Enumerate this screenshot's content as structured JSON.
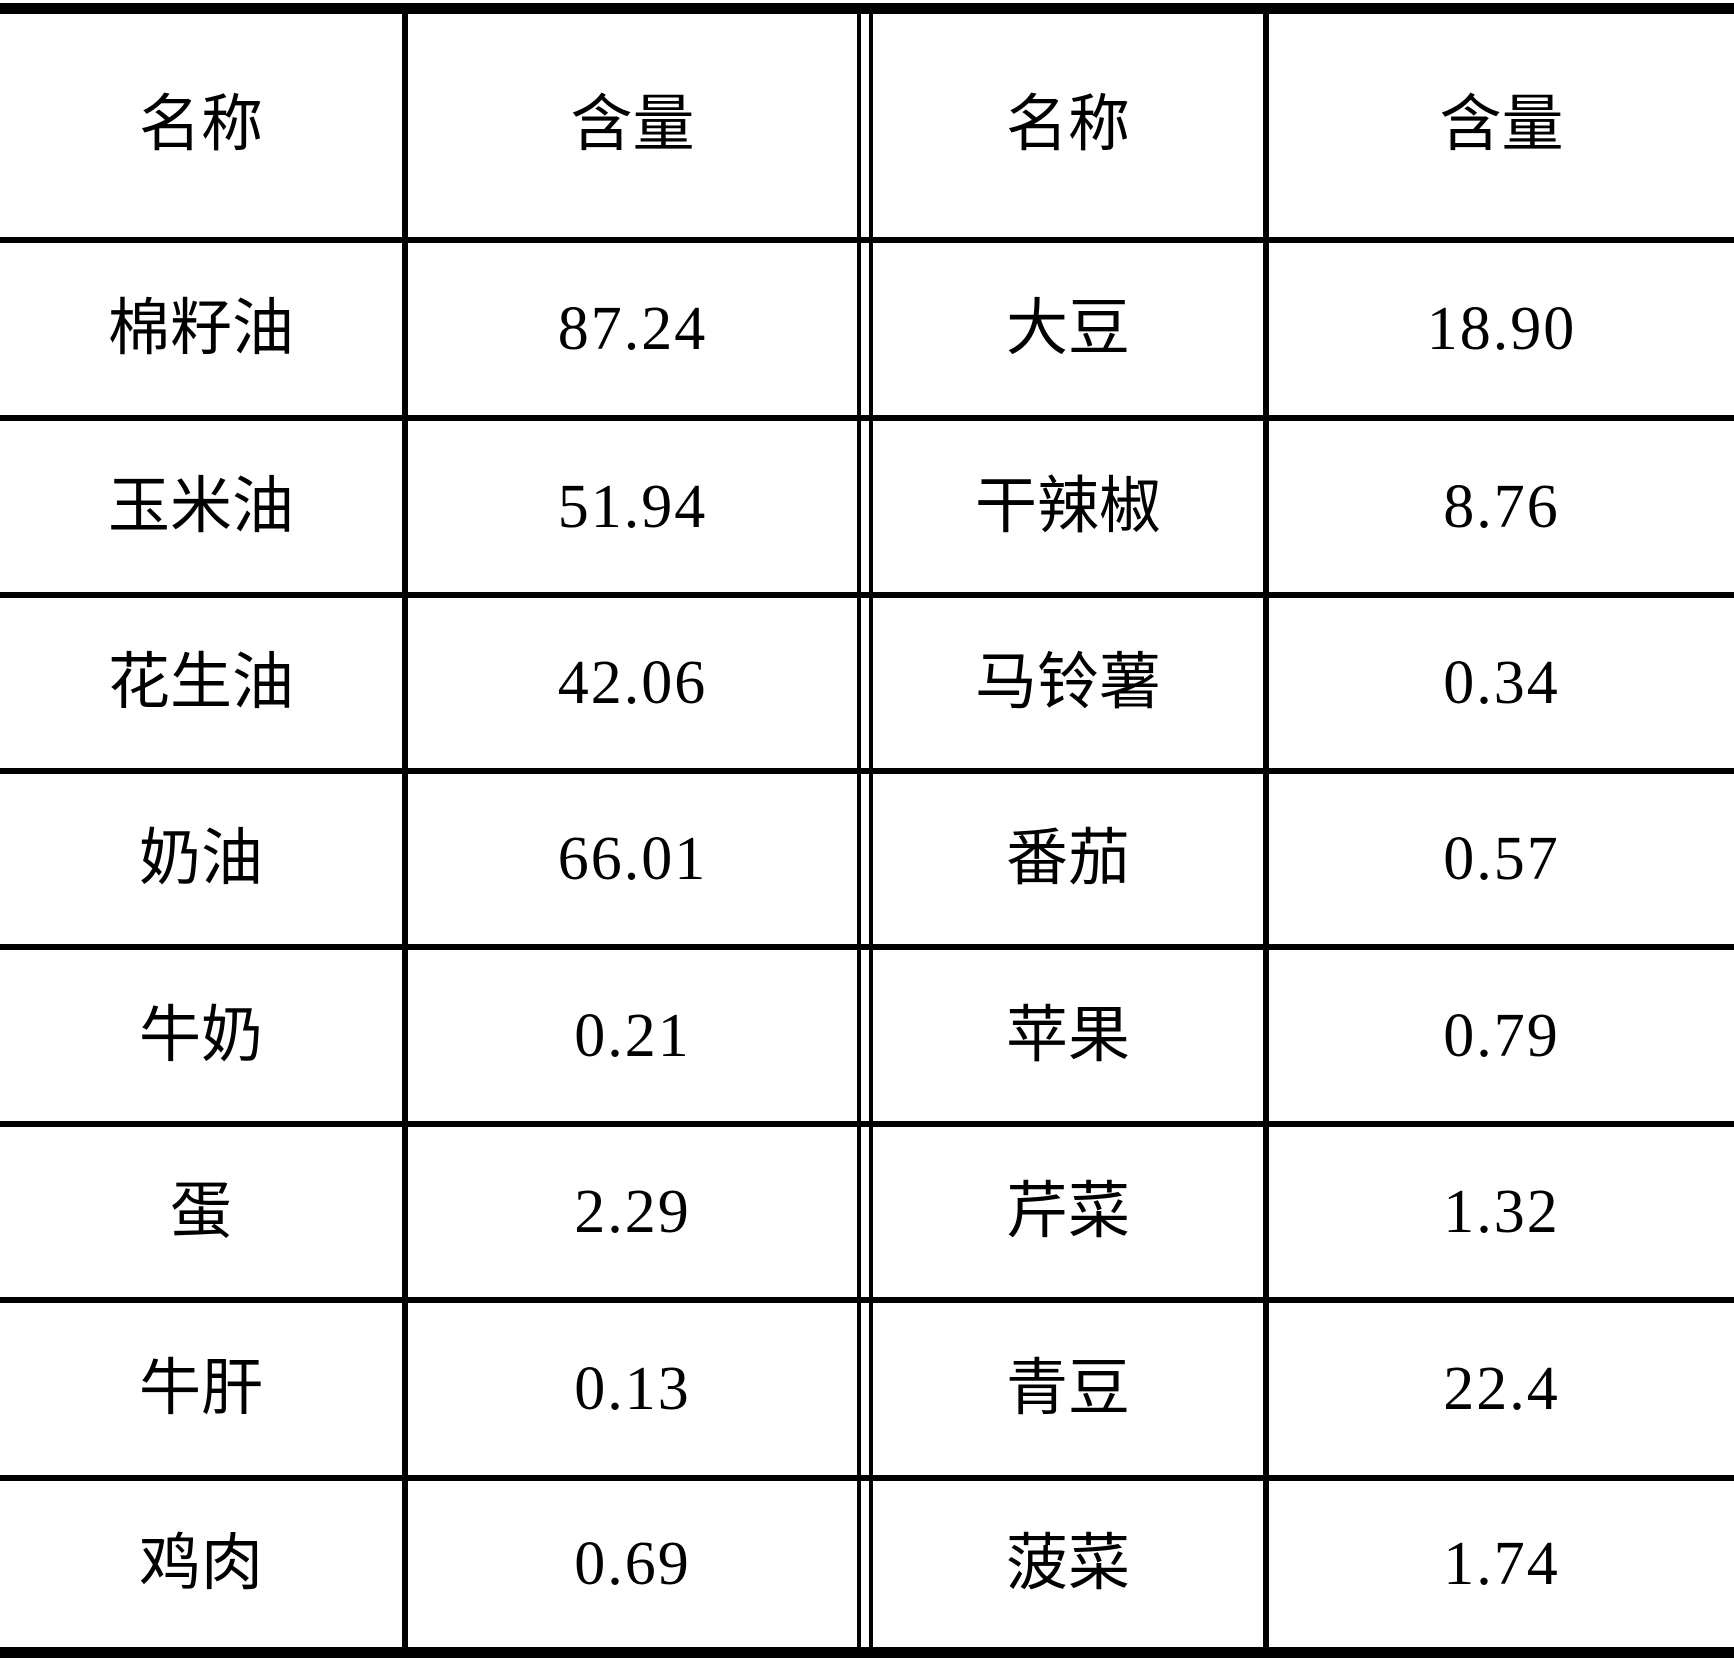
{
  "table": {
    "background": "#ffffff",
    "line_color": "#000000",
    "left": {
      "header": {
        "name": "名称",
        "amount": "含量"
      },
      "rows": [
        {
          "name": "棉籽油",
          "amount": "87.24"
        },
        {
          "name": "玉米油",
          "amount": "51.94"
        },
        {
          "name": "花生油",
          "amount": "42.06"
        },
        {
          "name": "奶油",
          "amount": "66.01"
        },
        {
          "name": "牛奶",
          "amount": "0.21"
        },
        {
          "name": "蛋",
          "amount": "2.29"
        },
        {
          "name": "牛肝",
          "amount": "0.13"
        },
        {
          "name": "鸡肉",
          "amount": "0.69"
        }
      ]
    },
    "right": {
      "header": {
        "name": "名称",
        "amount": "含量"
      },
      "rows": [
        {
          "name": "大豆",
          "amount": "18.90"
        },
        {
          "name": "干辣椒",
          "amount": "8.76"
        },
        {
          "name": "马铃薯",
          "amount": "0.34"
        },
        {
          "name": "番茄",
          "amount": "0.57"
        },
        {
          "name": "苹果",
          "amount": "0.79"
        },
        {
          "name": "芹菜",
          "amount": "1.32"
        },
        {
          "name": "青豆",
          "amount": "22.4"
        },
        {
          "name": "菠菜",
          "amount": "1.74"
        }
      ]
    }
  }
}
